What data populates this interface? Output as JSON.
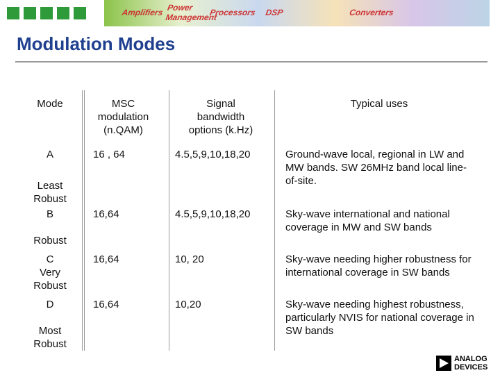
{
  "banner": {
    "items": [
      "Amplifiers",
      "Power Management",
      "Processors",
      "DSP",
      "Converters"
    ]
  },
  "title": "Modulation Modes",
  "table": {
    "header": [
      "Mode",
      "MSC modulation (n.QAM)",
      "Signal bandwidth options (k.Hz)",
      "Typical uses"
    ],
    "rows": [
      {
        "mode": "A",
        "robustness": "Least Robust",
        "msc": "16 , 64",
        "bandwidth": "4.5,5,9,10,18,20",
        "uses": "Ground-wave local, regional in LW and MW bands. SW 26MHz band local line-of-site."
      },
      {
        "mode": "B",
        "robustness": "Robust",
        "msc": "16,64",
        "bandwidth": "4.5,5,9,10,18,20",
        "uses": "Sky-wave international and national coverage in MW and SW bands"
      },
      {
        "mode": "C",
        "robustness": "Very Robust",
        "msc": "16,64",
        "bandwidth": "10, 20",
        "uses": "Sky-wave needing higher robustness for international coverage in SW bands"
      },
      {
        "mode": "D",
        "robustness": "Most Robust",
        "msc": "16,64",
        "bandwidth": "10,20",
        "uses": "Sky-wave needing highest robustness, particularly NVIS for national coverage in SW bands"
      }
    ]
  },
  "logo": {
    "line1": "ANALOG",
    "line2": "DEVICES"
  }
}
